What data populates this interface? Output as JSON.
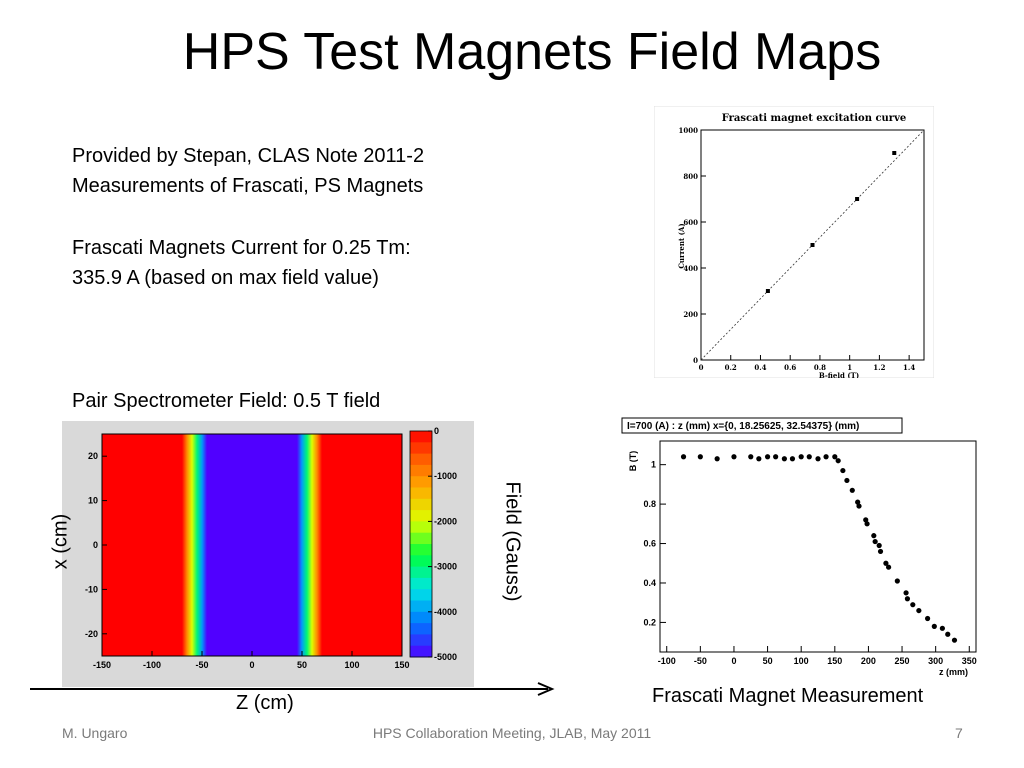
{
  "slide": {
    "title": "HPS Test Magnets Field Maps",
    "text": {
      "line1": "Provided by Stepan, CLAS Note 2011-2",
      "line2": "Measurements of Frascati, PS Magnets",
      "line3": "Frascati Magnets Current for 0.25 Tm:",
      "line4": "335.9 A (based on max field value)",
      "line5": "Pair Spectrometer Field: 0.5 T field"
    },
    "labels": {
      "x_axis_heatmap": "x (cm)",
      "z_axis": "Z (cm)",
      "field_label": "Field (Gauss)",
      "frascati_caption": "Frascati Magnet Measurement"
    },
    "footer": {
      "author": "M. Ungaro",
      "meeting": "HPS Collaboration Meeting, JLAB, May 2011",
      "page": "7"
    }
  },
  "chart_data": [
    {
      "type": "scatter",
      "title": "Frascati magnet excitation curve",
      "xlabel": "B-field (T)",
      "ylabel": "Current (A)",
      "xlim": [
        0,
        1.5
      ],
      "ylim": [
        0,
        1000
      ],
      "x_ticks": [
        "0",
        "0.2",
        "0.4",
        "0.6",
        "0.8",
        "1",
        "1.2",
        "1.4"
      ],
      "y_ticks": [
        "0",
        "200",
        "400",
        "600",
        "800",
        "1000"
      ],
      "points": [
        {
          "x": 0.45,
          "y": 300
        },
        {
          "x": 0.75,
          "y": 500
        },
        {
          "x": 1.05,
          "y": 700
        },
        {
          "x": 1.3,
          "y": 900
        }
      ],
      "fit_line": {
        "x": [
          0,
          1.5
        ],
        "y": [
          0,
          1030
        ]
      },
      "grid": false
    },
    {
      "type": "heatmap",
      "xlabel": "Z (cm)",
      "ylabel": "x (cm)",
      "xlim": [
        -150,
        150
      ],
      "ylim": [
        -25,
        25
      ],
      "x_ticks": [
        "-150",
        "-100",
        "-50",
        "0",
        "50",
        "100",
        "150"
      ],
      "y_ticks": [
        "-20",
        "-10",
        "0",
        "10",
        "20"
      ],
      "colorbar_label": "Field (Gauss)",
      "colorbar_ticks": [
        "0",
        "-1000",
        "-2000",
        "-3000",
        "-4000",
        "-5000"
      ],
      "colorbar_range": [
        -5000,
        0
      ],
      "description_profile_z": [
        -150,
        -70,
        -55,
        -45,
        45,
        55,
        70,
        150
      ],
      "field_profile": [
        0,
        0,
        -3000,
        -5000,
        -5000,
        -3000,
        0,
        0
      ]
    },
    {
      "type": "scatter",
      "title": "I=700 (A) : z (mm) x={0, 18.25625, 32.54375} (mm)",
      "xlabel": "z (mm)",
      "ylabel": "B (T)",
      "xlim": [
        -110,
        360
      ],
      "ylim": [
        0.05,
        1.12
      ],
      "x_ticks": [
        "-100",
        "-50",
        "0",
        "50",
        "100",
        "150",
        "200",
        "250",
        "300",
        "350"
      ],
      "y_ticks": [
        "0.2",
        "0.4",
        "0.6",
        "0.8",
        "1"
      ],
      "points": [
        {
          "x": -75,
          "y": 1.04
        },
        {
          "x": -50,
          "y": 1.04
        },
        {
          "x": -25,
          "y": 1.03
        },
        {
          "x": 0,
          "y": 1.04
        },
        {
          "x": 25,
          "y": 1.04
        },
        {
          "x": 37,
          "y": 1.03
        },
        {
          "x": 50,
          "y": 1.04
        },
        {
          "x": 62,
          "y": 1.04
        },
        {
          "x": 75,
          "y": 1.03
        },
        {
          "x": 87,
          "y": 1.03
        },
        {
          "x": 100,
          "y": 1.04
        },
        {
          "x": 112,
          "y": 1.04
        },
        {
          "x": 125,
          "y": 1.03
        },
        {
          "x": 137,
          "y": 1.04
        },
        {
          "x": 150,
          "y": 1.04
        },
        {
          "x": 155,
          "y": 1.02
        },
        {
          "x": 162,
          "y": 0.97
        },
        {
          "x": 168,
          "y": 0.92
        },
        {
          "x": 176,
          "y": 0.87
        },
        {
          "x": 184,
          "y": 0.81
        },
        {
          "x": 186,
          "y": 0.79
        },
        {
          "x": 196,
          "y": 0.72
        },
        {
          "x": 198,
          "y": 0.7
        },
        {
          "x": 208,
          "y": 0.64
        },
        {
          "x": 210,
          "y": 0.61
        },
        {
          "x": 216,
          "y": 0.59
        },
        {
          "x": 218,
          "y": 0.56
        },
        {
          "x": 226,
          "y": 0.5
        },
        {
          "x": 230,
          "y": 0.48
        },
        {
          "x": 243,
          "y": 0.41
        },
        {
          "x": 256,
          "y": 0.35
        },
        {
          "x": 258,
          "y": 0.32
        },
        {
          "x": 266,
          "y": 0.29
        },
        {
          "x": 275,
          "y": 0.26
        },
        {
          "x": 288,
          "y": 0.22
        },
        {
          "x": 298,
          "y": 0.18
        },
        {
          "x": 310,
          "y": 0.17
        },
        {
          "x": 318,
          "y": 0.14
        },
        {
          "x": 328,
          "y": 0.11
        }
      ],
      "grid": false
    }
  ]
}
